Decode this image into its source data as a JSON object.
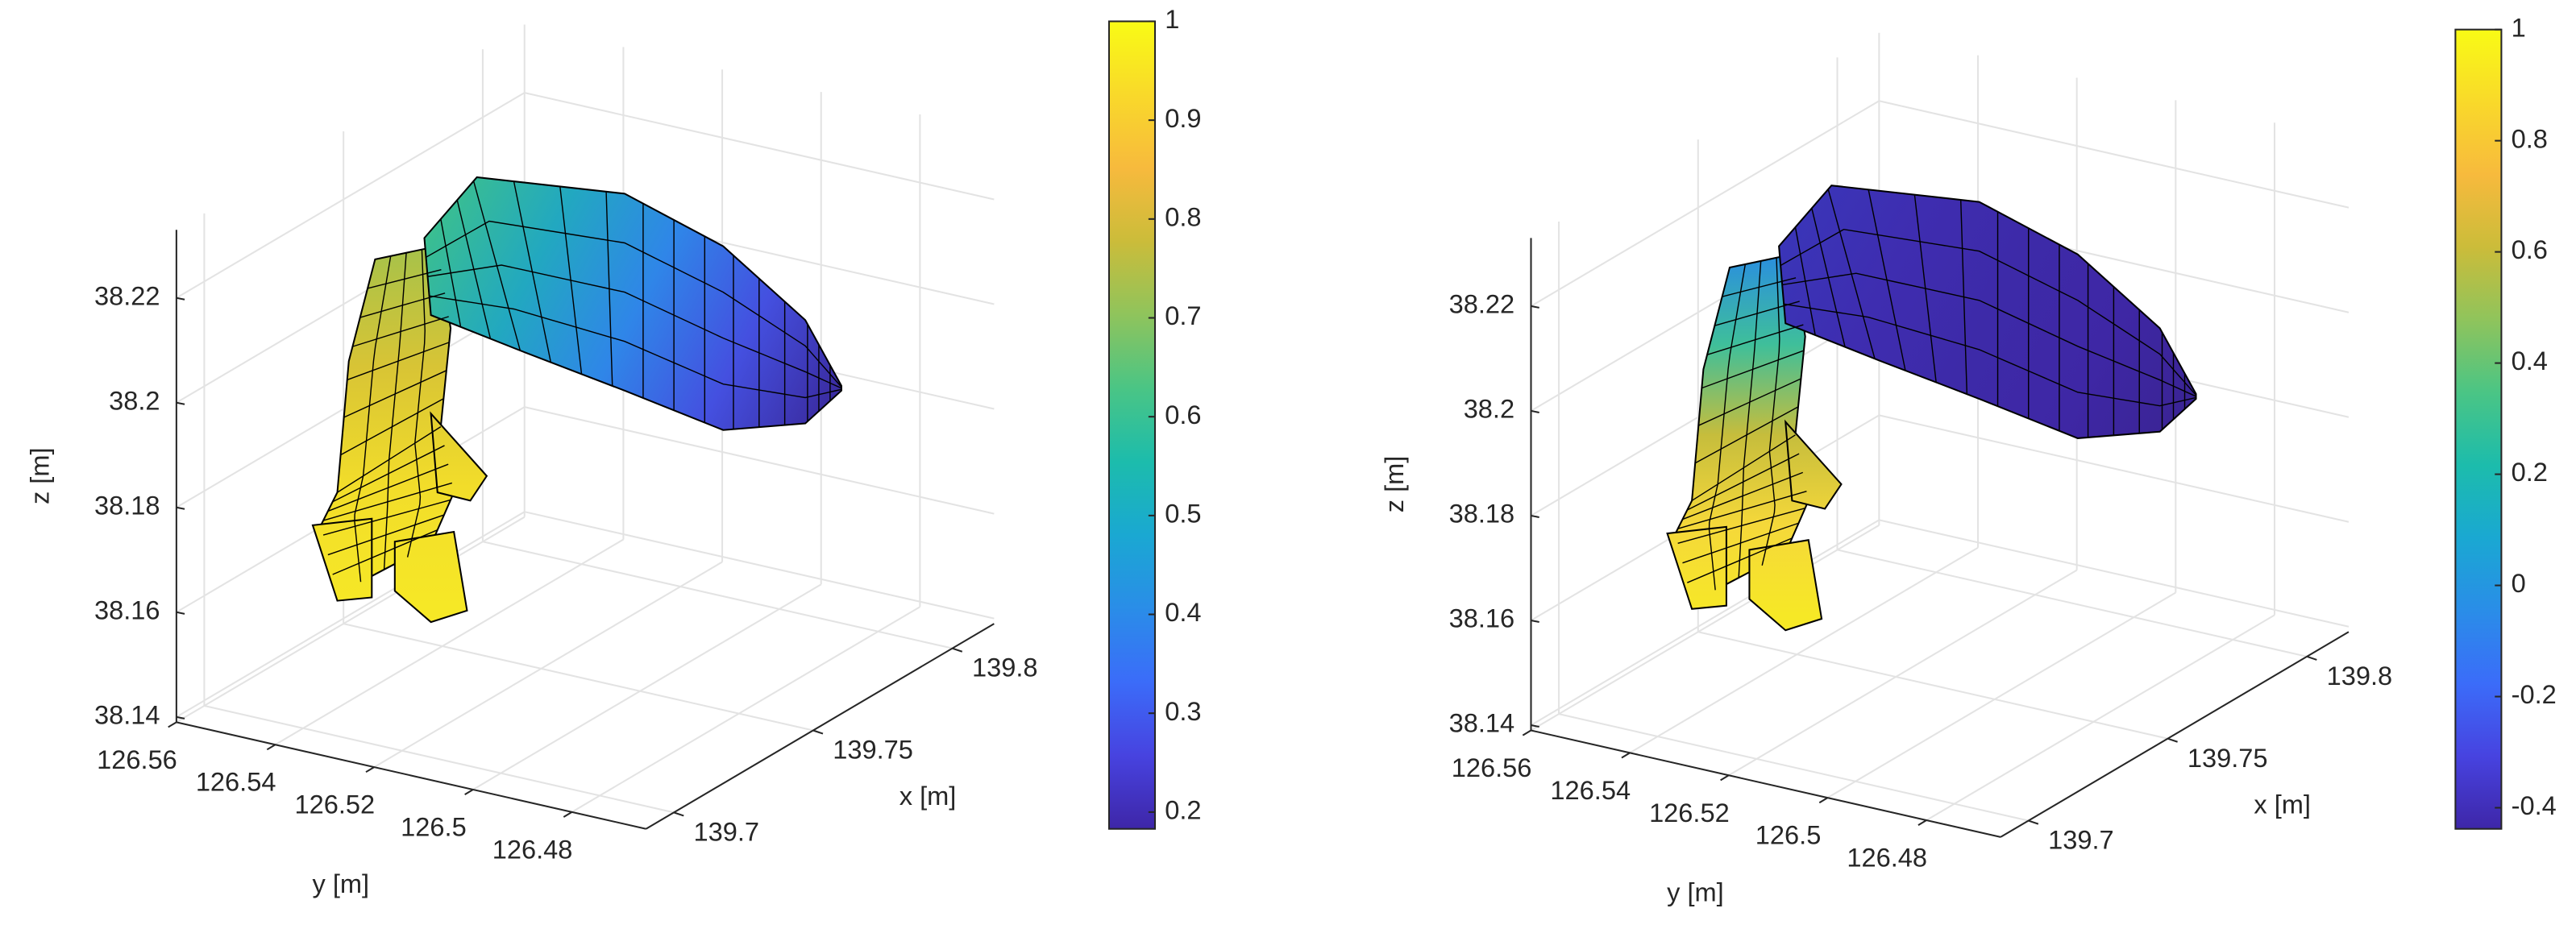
{
  "chart_data": [
    {
      "type": "surface",
      "colormap": "parula",
      "grid": true,
      "xlabel": "x [m]",
      "ylabel": "y [m]",
      "zlabel": "z [m]",
      "xlim": [
        139.69,
        139.815
      ],
      "xticks": [
        139.7,
        139.75,
        139.8
      ],
      "ylim": [
        126.465,
        126.56
      ],
      "yticks": [
        126.56,
        126.54,
        126.52,
        126.5,
        126.48
      ],
      "zlim": [
        38.139,
        38.233
      ],
      "zticks": [
        38.14,
        38.16,
        38.18,
        38.2,
        38.22
      ],
      "clim": [
        0.183,
        1
      ],
      "cticks": [
        0.2,
        0.3,
        0.4,
        0.5,
        0.6,
        0.7,
        0.8,
        0.9,
        1
      ]
    },
    {
      "type": "surface",
      "colormap": "parula",
      "grid": true,
      "xlabel": "x [m]",
      "ylabel": "y [m]",
      "zlabel": "z [m]",
      "xlim": [
        139.69,
        139.815
      ],
      "xticks": [
        139.7,
        139.75,
        139.8
      ],
      "ylim": [
        126.465,
        126.56
      ],
      "yticks": [
        126.56,
        126.54,
        126.52,
        126.5,
        126.48
      ],
      "zlim": [
        38.139,
        38.233
      ],
      "zticks": [
        38.14,
        38.16,
        38.18,
        38.2,
        38.22
      ],
      "clim": [
        -0.438,
        1
      ],
      "cticks": [
        -0.4,
        -0.2,
        0,
        0.2,
        0.4,
        0.6,
        0.8,
        1
      ]
    }
  ]
}
